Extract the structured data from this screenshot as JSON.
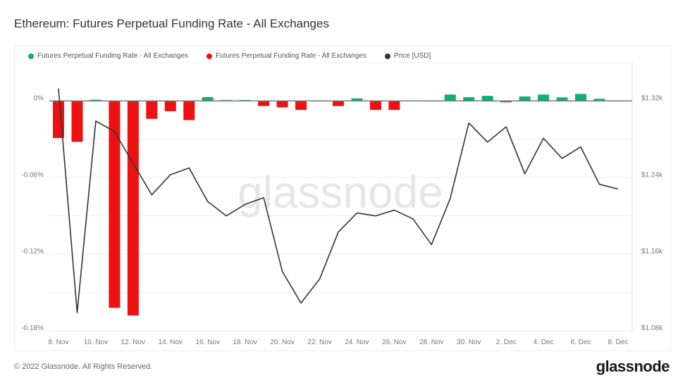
{
  "title": "Ethereum: Futures Perpetual Funding Rate - All Exchanges",
  "footer": "© 2022 Glassnode. All Rights Reserved.",
  "logo": "glassnode",
  "watermark": "glassnode",
  "colors": {
    "positive": "#0bb36b",
    "negative": "#ee1111",
    "price": "#333333"
  },
  "chart_data": {
    "type": "bar+line",
    "title": "Ethereum: Futures Perpetual Funding Rate - All Exchanges",
    "legend": [
      {
        "label": "Futures Perpetual Funding Rate - All Exchanges",
        "color": "#0bb36b"
      },
      {
        "label": "Futures Perpetual Funding Rate - All Exchanges",
        "color": "#ee1111"
      },
      {
        "label": "Price [USD]",
        "color": "#333333"
      }
    ],
    "legend_position": "top-left",
    "dates": [
      "8 Nov",
      "9 Nov",
      "10 Nov",
      "11 Nov",
      "12 Nov",
      "13 Nov",
      "14 Nov",
      "15 Nov",
      "16 Nov",
      "17 Nov",
      "18 Nov",
      "19 Nov",
      "20 Nov",
      "21 Nov",
      "22 Nov",
      "23 Nov",
      "24 Nov",
      "25 Nov",
      "26 Nov",
      "27 Nov",
      "28 Nov",
      "29 Nov",
      "30 Nov",
      "1 Dec",
      "2 Dec",
      "3 Dec",
      "4 Dec",
      "5 Dec",
      "6 Dec",
      "7 Dec",
      "8 Dec"
    ],
    "x_tick_labels": [
      "8. Nov",
      "10. Nov",
      "12. Nov",
      "14. Nov",
      "16. Nov",
      "18. Nov",
      "20. Nov",
      "22. Nov",
      "24. Nov",
      "26. Nov",
      "28. Nov",
      "30. Nov",
      "2. Dec",
      "4. Dec",
      "6. Dec",
      "8. Dec"
    ],
    "funding_rate_pct": [
      -0.029,
      -0.032,
      0.001,
      -0.162,
      -0.168,
      -0.014,
      -0.008,
      -0.015,
      0.003,
      0.0007,
      0.0007,
      -0.004,
      -0.005,
      -0.007,
      0.0002,
      -0.004,
      0.002,
      -0.007,
      -0.007,
      0.0003,
      0,
      0.005,
      0.003,
      0.004,
      -0.001,
      0.0035,
      0.005,
      0.0028,
      0.0055,
      0.0017,
      null
    ],
    "price_usd": [
      1333,
      1099,
      1299,
      1288,
      1255,
      1222,
      1243,
      1250,
      1215,
      1200,
      1212,
      1219,
      1142,
      1109,
      1134,
      1183,
      1203,
      1200,
      1206,
      1197,
      1170,
      1218,
      1297,
      1277,
      1293,
      1244,
      1281,
      1260,
      1272,
      1233,
      1228
    ],
    "y_left": {
      "ticks": [
        0,
        -0.06,
        -0.12,
        -0.18
      ],
      "tick_labels": [
        "0%",
        "-0.06%",
        "-0.12%",
        "-0.18%"
      ],
      "ylim": [
        -0.18,
        0.03
      ]
    },
    "y_right": {
      "ticks": [
        1320,
        1240,
        1160,
        1080
      ],
      "tick_labels": [
        "$1.32k",
        "$1.24k",
        "$1.16k",
        "$1.08k"
      ],
      "ylim": [
        1080,
        1360
      ]
    },
    "grid": true
  }
}
